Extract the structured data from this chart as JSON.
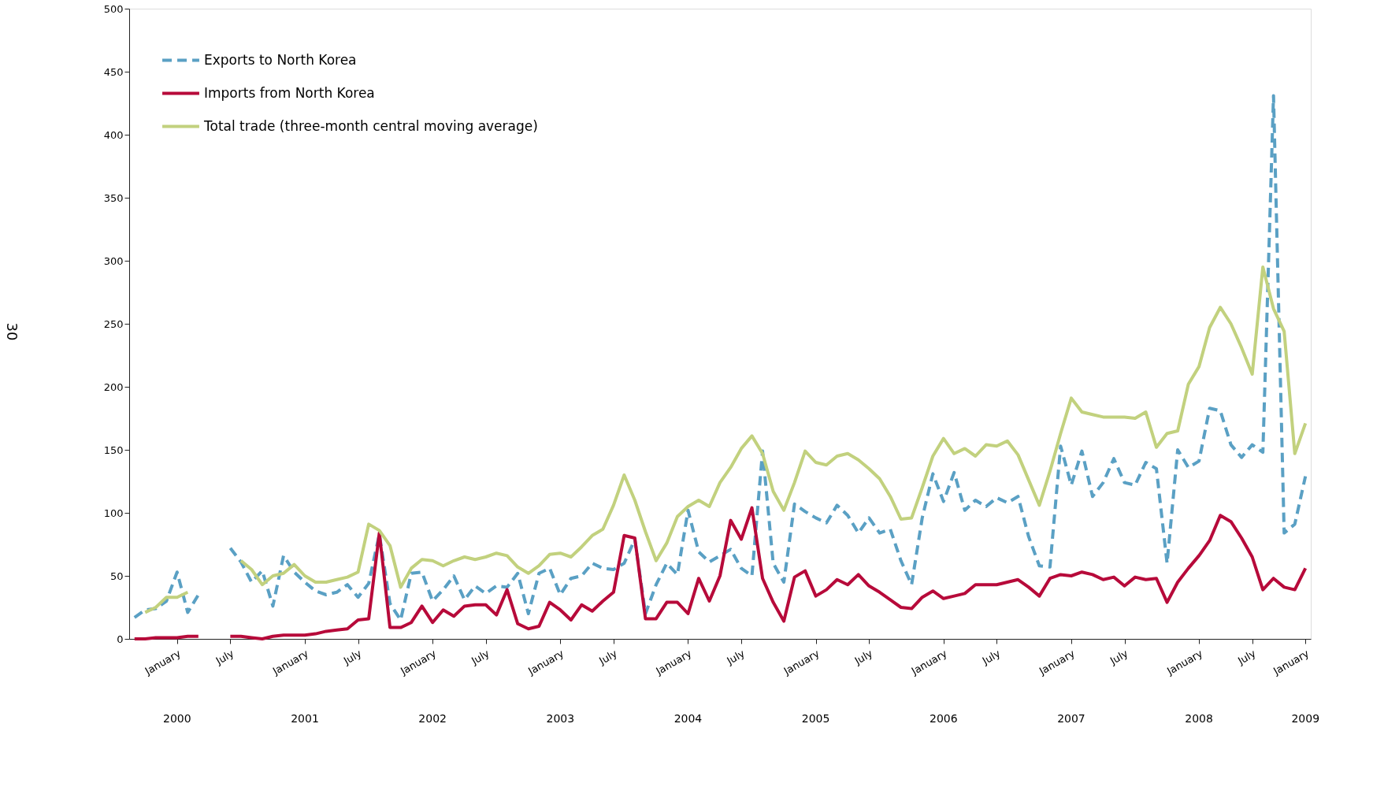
{
  "chart_data": {
    "type": "line",
    "categories": [
      null,
      null,
      null,
      null,
      "January",
      null,
      null,
      null,
      null,
      "July",
      null,
      null,
      null,
      null,
      null,
      null,
      "January",
      null,
      null,
      null,
      null,
      "July",
      null,
      null,
      null,
      null,
      null,
      null,
      "January",
      null,
      null,
      null,
      null,
      "July",
      null,
      null,
      null,
      null,
      null,
      null,
      "January",
      null,
      null,
      null,
      null,
      "July",
      null,
      null,
      null,
      null,
      null,
      null,
      "January",
      null,
      null,
      null,
      null,
      "July",
      null,
      null,
      null,
      null,
      null,
      null,
      "January",
      null,
      null,
      null,
      null,
      "July",
      null,
      null,
      null,
      null,
      null,
      null,
      "January",
      null,
      null,
      null,
      null,
      "July",
      null,
      null,
      null,
      null,
      null,
      null,
      "January",
      null,
      null,
      null,
      null,
      "July",
      null,
      null,
      null,
      null,
      null,
      null,
      "January",
      null,
      null,
      null,
      null,
      "July",
      null,
      null,
      null,
      null,
      "January"
    ],
    "series": [
      {
        "name": "Exports to North Korea",
        "color": "#5aa0c4",
        "line_style": "dashed",
        "values": [
          17,
          23,
          24,
          30,
          53,
          21,
          35,
          null,
          null,
          72,
          61,
          45,
          54,
          26,
          66,
          53,
          45,
          38,
          35,
          37,
          43,
          33,
          44,
          83,
          28,
          15,
          52,
          53,
          30,
          39,
          50,
          31,
          42,
          36,
          42,
          41,
          52,
          20,
          52,
          56,
          35,
          48,
          50,
          60,
          56,
          55,
          60,
          79,
          20,
          43,
          60,
          51,
          102,
          69,
          61,
          66,
          71,
          56,
          50,
          149,
          60,
          45,
          107,
          101,
          96,
          92,
          106,
          98,
          84,
          96,
          84,
          87,
          62,
          43,
          96,
          131,
          109,
          132,
          102,
          110,
          105,
          112,
          108,
          113,
          81,
          58,
          57,
          153,
          122,
          149,
          113,
          124,
          143,
          124,
          122,
          140,
          135,
          60,
          150,
          136,
          141,
          183,
          181,
          154,
          144,
          154,
          148,
          431,
          84,
          91,
          129
        ]
      },
      {
        "name": "Imports from North Korea",
        "color": "#b70a3a",
        "line_style": "solid",
        "values": [
          0,
          0,
          1,
          1,
          1,
          2,
          2,
          null,
          null,
          2,
          2,
          1,
          0,
          2,
          3,
          3,
          3,
          4,
          6,
          7,
          8,
          15,
          16,
          84,
          9,
          9,
          13,
          26,
          13,
          23,
          18,
          26,
          27,
          27,
          19,
          39,
          12,
          8,
          10,
          29,
          23,
          15,
          27,
          22,
          30,
          37,
          82,
          80,
          16,
          16,
          29,
          29,
          20,
          48,
          30,
          50,
          94,
          79,
          104,
          48,
          29,
          14,
          49,
          54,
          34,
          39,
          47,
          43,
          51,
          42,
          37,
          31,
          25,
          24,
          33,
          38,
          32,
          34,
          36,
          43,
          43,
          43,
          45,
          47,
          41,
          34,
          48,
          51,
          50,
          53,
          51,
          47,
          49,
          42,
          49,
          47,
          48,
          29,
          45,
          56,
          66,
          78,
          98,
          93,
          80,
          65,
          39,
          48,
          41,
          39,
          56
        ]
      },
      {
        "name": "Total trade (three-month central moving average)",
        "color": "#c2d17e",
        "line_style": "solid",
        "values": [
          null,
          21,
          25,
          33,
          33,
          37,
          null,
          null,
          null,
          null,
          62,
          55,
          43,
          50,
          52,
          59,
          50,
          45,
          45,
          47,
          49,
          53,
          91,
          86,
          74,
          41,
          56,
          63,
          62,
          58,
          62,
          65,
          63,
          65,
          68,
          66,
          57,
          52,
          58,
          67,
          68,
          65,
          73,
          82,
          87,
          106,
          130,
          110,
          85,
          62,
          76,
          97,
          105,
          110,
          105,
          124,
          136,
          151,
          161,
          147,
          117,
          102,
          124,
          149,
          140,
          138,
          145,
          147,
          142,
          135,
          127,
          113,
          95,
          96,
          120,
          145,
          159,
          147,
          151,
          145,
          154,
          153,
          157,
          146,
          126,
          106,
          133,
          163,
          191,
          180,
          178,
          176,
          176,
          176,
          175,
          180,
          152,
          163,
          165,
          202,
          216,
          247,
          263,
          250,
          231,
          210,
          295,
          262,
          244,
          147,
          171
        ]
      }
    ],
    "ylim": [
      0,
      500
    ],
    "yticks": [
      0,
      50,
      100,
      150,
      200,
      250,
      300,
      350,
      400,
      450,
      500
    ],
    "legend": "top left",
    "annotations": [
      "2000",
      "2001",
      "2002",
      "2003",
      "2004",
      "2005",
      "2006",
      "2007",
      "2008",
      "2009",
      "30"
    ]
  }
}
